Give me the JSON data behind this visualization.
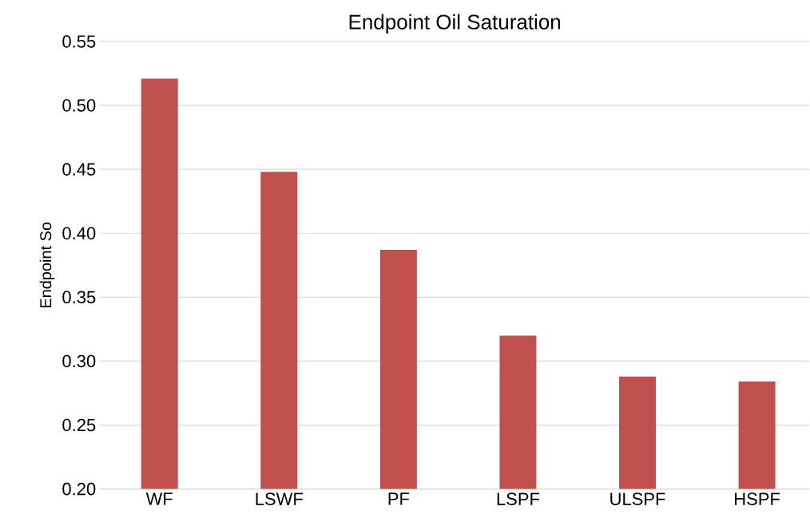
{
  "chart_data": {
    "type": "bar",
    "title": "Endpoint Oil Saturation",
    "ylabel": "Endpoint So",
    "categories": [
      "WF",
      "LSWF",
      "PF",
      "LSPF",
      "ULSPF",
      "HSPF"
    ],
    "values": [
      0.521,
      0.448,
      0.387,
      0.32,
      0.288,
      0.284
    ],
    "color": "#c0504d",
    "ylim": [
      0.2,
      0.55
    ],
    "yticks": [
      {
        "value": 0.2,
        "label": "0.20"
      },
      {
        "value": 0.25,
        "label": "0.25"
      },
      {
        "value": 0.3,
        "label": "0.30"
      },
      {
        "value": 0.35,
        "label": "0.35"
      },
      {
        "value": 0.4,
        "label": "0.40"
      },
      {
        "value": 0.45,
        "label": "0.45"
      },
      {
        "value": 0.5,
        "label": "0.50"
      },
      {
        "value": 0.55,
        "label": "0.55"
      }
    ],
    "grid": "y"
  }
}
